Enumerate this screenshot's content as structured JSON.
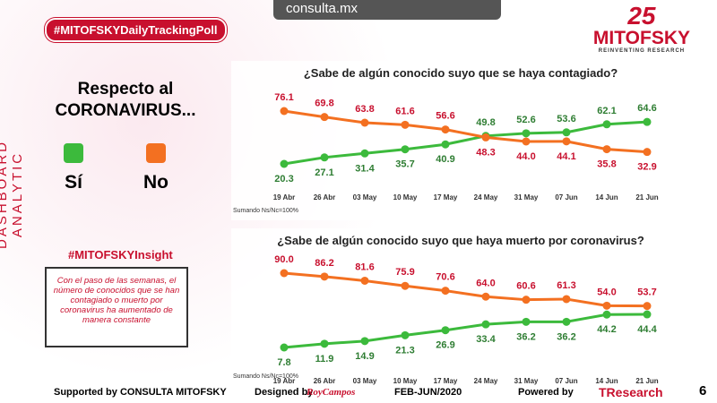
{
  "header": {
    "hashtag": "#MITOFSKYDailyTrackingPoll",
    "site": "consulta.mx",
    "logo_years": "25",
    "logo_name": "MITOFSKY",
    "logo_tagline": "REINVENTING RESEARCH"
  },
  "side_label": "DASHBOARD ANALYTIC",
  "legend_title": "Respecto al CORONAVIRUS...",
  "insight": {
    "title": "#MITOFSKYInsight",
    "text": "Con el paso de las semanas, el número de conocidos que se han contagiado o muerto por coronavirus ha aumentado de manera constante"
  },
  "footer": {
    "supported": "Supported by CONSULTA MITOFSKY",
    "designed": "Designed by",
    "designer": "RoyCampos",
    "period": "FEB-JUN/2020",
    "powered": "Powered by",
    "brand": "TResearch",
    "page": "6"
  },
  "chart_data": [
    {
      "type": "line",
      "title": "¿Sabe de algún conocido suyo que se haya contagiado?",
      "note": "Sumando Ns/Nc=100%",
      "categories": [
        "19 Abr",
        "26 Abr",
        "03 May",
        "10 May",
        "17 May",
        "24 May",
        "31 May",
        "07 Jun",
        "14 Jun",
        "21 Jun"
      ],
      "series": [
        {
          "name": "Sí",
          "color": "#3cba3c",
          "values": [
            20.3,
            27.1,
            31.4,
            35.7,
            40.9,
            49.8,
            52.6,
            53.6,
            62.1,
            64.6
          ]
        },
        {
          "name": "No",
          "color": "#f37021",
          "values": [
            76.1,
            69.8,
            63.8,
            61.6,
            56.6,
            48.3,
            44.0,
            44.1,
            35.8,
            32.9
          ],
          "value_labels": [
            "76.1",
            "69.8",
            "63.8",
            "61.6",
            "56.6",
            "48.3",
            "44.0",
            "44.1",
            "35.8",
            "32.9"
          ]
        }
      ]
    },
    {
      "type": "line",
      "title": "¿Sabe de algún conocido suyo que haya muerto por coronavirus?",
      "note": "Sumando Ns/Nc=100%",
      "categories": [
        "19 Abr",
        "26 Abr",
        "03 May",
        "10 May",
        "17 May",
        "24 May",
        "31 May",
        "07 Jun",
        "14 Jun",
        "21 Jun"
      ],
      "series": [
        {
          "color": "#3cba3c",
          "values": [
            7.8,
            11.9,
            14.9,
            21.3,
            26.9,
            33.4,
            36.2,
            36.2,
            44.2,
            44.4
          ]
        },
        {
          "color": "#f37021",
          "values": [
            90.0,
            86.2,
            81.6,
            75.9,
            70.6,
            64.0,
            60.6,
            61.3,
            54.0,
            53.7
          ],
          "value_labels": [
            "90.0",
            "86.2",
            "81.6",
            "75.9",
            "70.6",
            "64.0",
            "60.6",
            "61.3",
            "54.0",
            "53.7"
          ]
        }
      ]
    }
  ]
}
